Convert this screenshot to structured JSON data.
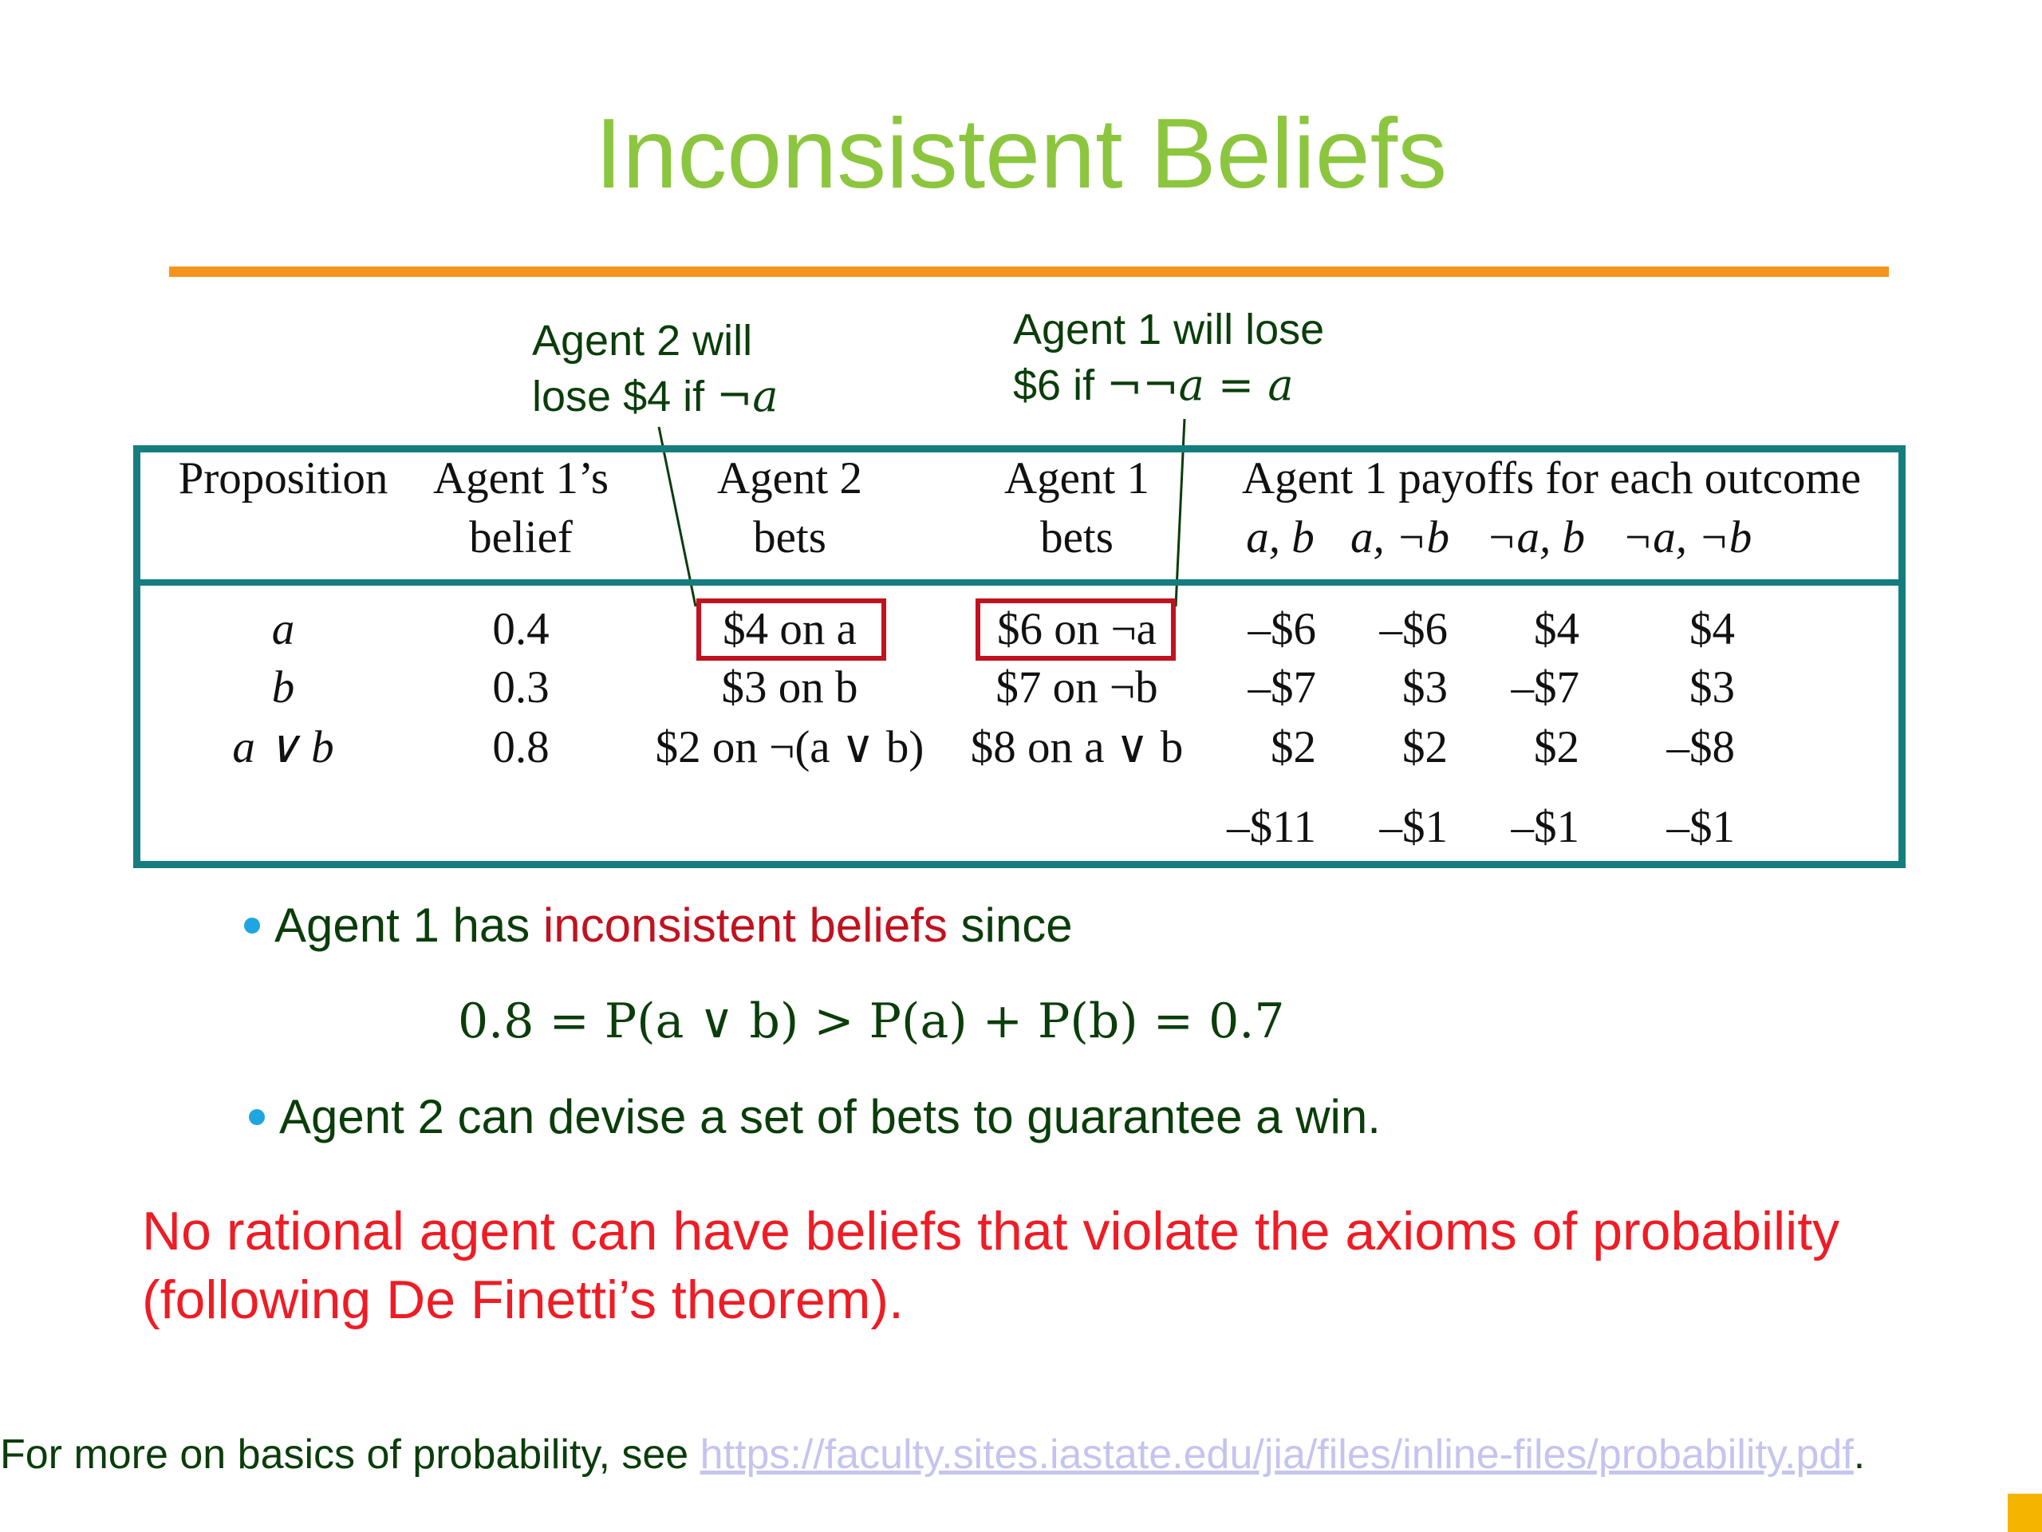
{
  "slide": {
    "title": "Inconsistent Beliefs",
    "callouts": {
      "agent2": {
        "line1": "Agent 2 will",
        "line2_prefix": "lose $4 if ",
        "line2_math": "¬a"
      },
      "agent1": {
        "line1": "Agent 1 will lose",
        "line2_prefix": "$6 if ",
        "line2_math": "¬¬a",
        "line2_eq": " = ",
        "line2_math2": "a"
      }
    },
    "table": {
      "headers": {
        "proposition": "Proposition",
        "belief": [
          "Agent 1’s",
          "belief"
        ],
        "agent2_bets": [
          "Agent 2",
          "bets"
        ],
        "agent1_bets": [
          "Agent 1",
          "bets"
        ],
        "payoffs": "Agent 1 payoffs for each outcome",
        "outcomes": [
          "a, b",
          "a, ¬b",
          "¬a, b",
          "¬a, ¬b"
        ]
      },
      "rows": [
        {
          "proposition": "a",
          "belief": "0.4",
          "agent2_bet": "$4 on a",
          "agent1_bet": "$6 on ¬a",
          "payoffs": [
            "–$6",
            "–$6",
            "$4",
            "$4"
          ]
        },
        {
          "proposition": "b",
          "belief": "0.3",
          "agent2_bet": "$3 on b",
          "agent1_bet": "$7 on ¬b",
          "payoffs": [
            "–$7",
            "$3",
            "–$7",
            "$3"
          ]
        },
        {
          "proposition": "a ∨ b",
          "belief": "0.8",
          "agent2_bet": "$2 on ¬(a ∨ b)",
          "agent1_bet": "$8 on a ∨ b",
          "payoffs": [
            "$2",
            "$2",
            "$2",
            "–$8"
          ]
        }
      ],
      "totals": [
        "–$11",
        "–$1",
        "–$1",
        "–$1"
      ]
    },
    "bullet1": {
      "prefix": "Agent 1 has ",
      "emphasis": "inconsistent beliefs",
      "suffix": " since"
    },
    "formula": "0.8 = P(a ∨ b) >  P(a) + P(b) = 0.7",
    "bullet2": "Agent 2 can devise a set of bets to guarantee a win.",
    "conclusion": [
      "No rational agent can have beliefs that violate the axioms of probability",
      "(following De Finetti’s theorem)."
    ],
    "footer": {
      "prefix": "For more on basics of probability, see ",
      "link": "https://faculty.sites.iastate.edu/jia/files/inline-files/probability.pdf",
      "suffix": "."
    },
    "colors": {
      "title": "#8cc63f",
      "rule": "#f7941d",
      "table_border": "#167d7f",
      "highlight_box": "#c1121f",
      "body_text": "#0a3d0a",
      "conclusion": "#ee1c25",
      "bullet": "#1fa6e0",
      "link": "#c5c4f0",
      "corner_mark": "#f4b400"
    }
  }
}
